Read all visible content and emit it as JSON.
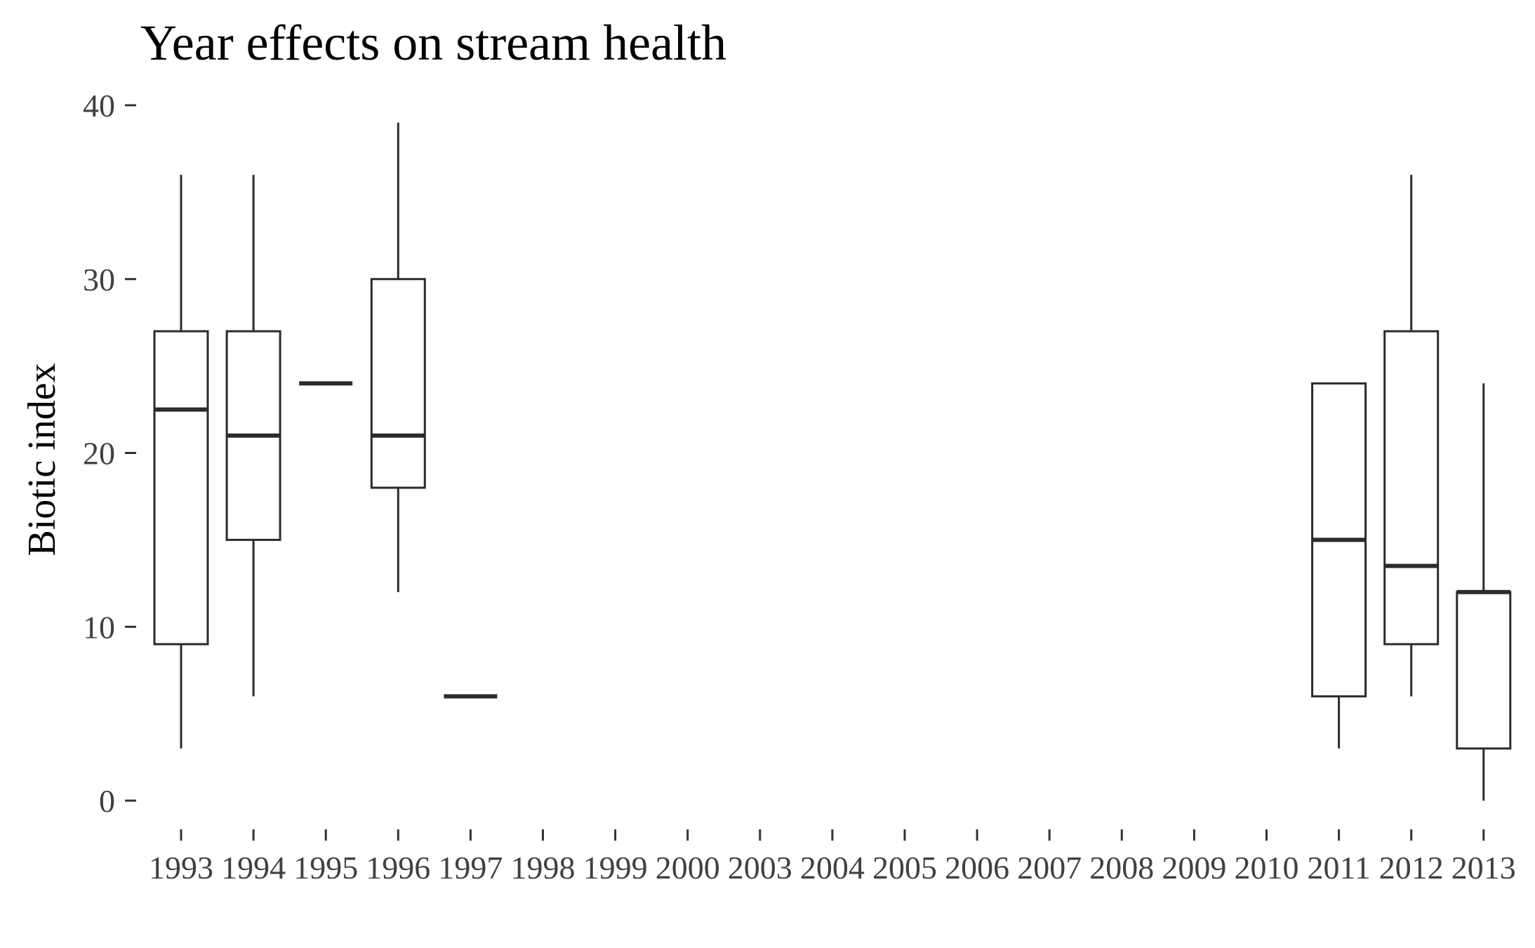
{
  "chart_data": {
    "type": "boxplot",
    "title": "Year effects on stream health",
    "xlabel": "",
    "ylabel": "Biotic index",
    "ylim": [
      0,
      40
    ],
    "yticks": [
      0,
      10,
      20,
      30,
      40
    ],
    "grid": false,
    "legend": "none",
    "colors": {
      "box_stroke": "#2b2b2b",
      "box_fill": "#ffffff",
      "tick_label": "#404040",
      "title": "#000000"
    },
    "categories": [
      "1993",
      "1994",
      "1995",
      "1996",
      "1997",
      "1998",
      "1999",
      "2000",
      "2003",
      "2004",
      "2005",
      "2006",
      "2007",
      "2008",
      "2009",
      "2010",
      "2011",
      "2012",
      "2013"
    ],
    "boxes": [
      {
        "category": "1993",
        "min": 3,
        "q1": 9,
        "median": 22.5,
        "q3": 27,
        "max": 36
      },
      {
        "category": "1994",
        "min": 6,
        "q1": 15,
        "median": 21,
        "q3": 27,
        "max": 36
      },
      {
        "category": "1995",
        "min": 24,
        "q1": 24,
        "median": 24,
        "q3": 24,
        "max": 24
      },
      {
        "category": "1996",
        "min": 12,
        "q1": 18,
        "median": 21,
        "q3": 30,
        "max": 39
      },
      {
        "category": "1997",
        "min": 6,
        "q1": 6,
        "median": 6,
        "q3": 6,
        "max": 6
      },
      {
        "category": "2011",
        "min": 3,
        "q1": 6,
        "median": 15,
        "q3": 24,
        "max": 24
      },
      {
        "category": "2012",
        "min": 6,
        "q1": 9,
        "median": 13.5,
        "q3": 27,
        "max": 36
      },
      {
        "category": "2013",
        "min": 0,
        "q1": 3,
        "median": 12,
        "q3": 12,
        "max": 24
      }
    ]
  }
}
